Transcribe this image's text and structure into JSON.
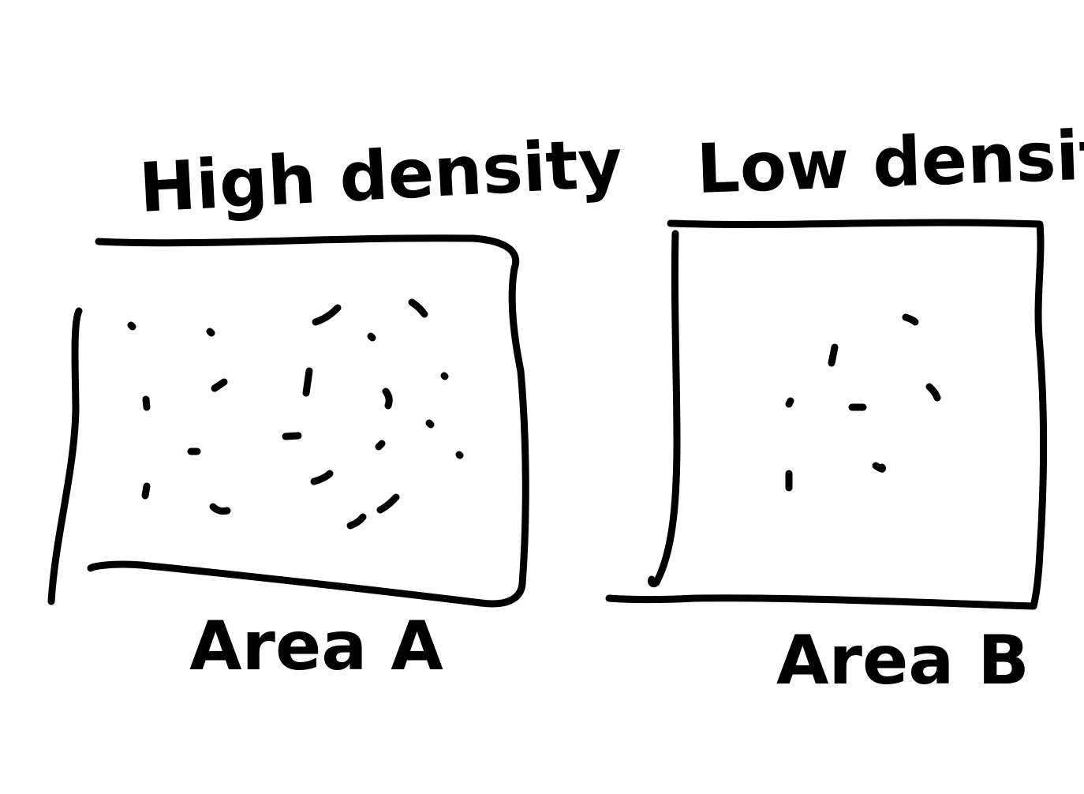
{
  "ink_color": "#000000",
  "background_color": "#ffffff",
  "areas": [
    {
      "heading": "High density",
      "caption": "Area A",
      "density": "high",
      "dot_count": 24
    },
    {
      "heading": "Low density",
      "caption": "Area B",
      "density": "low",
      "dot_count": 8
    }
  ]
}
